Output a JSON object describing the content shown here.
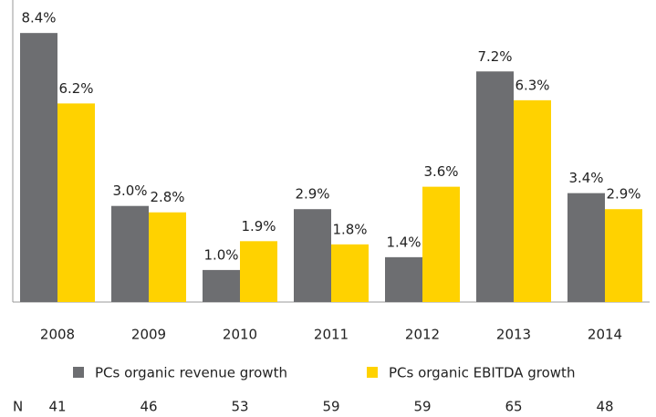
{
  "chart_data": {
    "type": "bar",
    "categories": [
      "2008",
      "2009",
      "2010",
      "2011",
      "2012",
      "2013",
      "2014"
    ],
    "series": [
      {
        "name": "PCs organic revenue growth",
        "color": "#6d6e71",
        "values": [
          8.4,
          3.0,
          1.0,
          2.9,
          1.4,
          7.2,
          3.4
        ],
        "value_labels": [
          "8.4%",
          "3.0%",
          "1.0%",
          "2.9%",
          "1.4%",
          "7.2%",
          "3.4%"
        ]
      },
      {
        "name": "PCs organic EBITDA growth",
        "color": "#ffd200",
        "values": [
          6.2,
          2.8,
          1.9,
          1.8,
          3.6,
          6.3,
          2.9
        ],
        "value_labels": [
          "6.2%",
          "2.8%",
          "1.9%",
          "1.8%",
          "3.6%",
          "6.3%",
          "2.9%"
        ]
      }
    ],
    "n_label": "N",
    "n_values": [
      41,
      46,
      53,
      59,
      59,
      65,
      48
    ]
  }
}
